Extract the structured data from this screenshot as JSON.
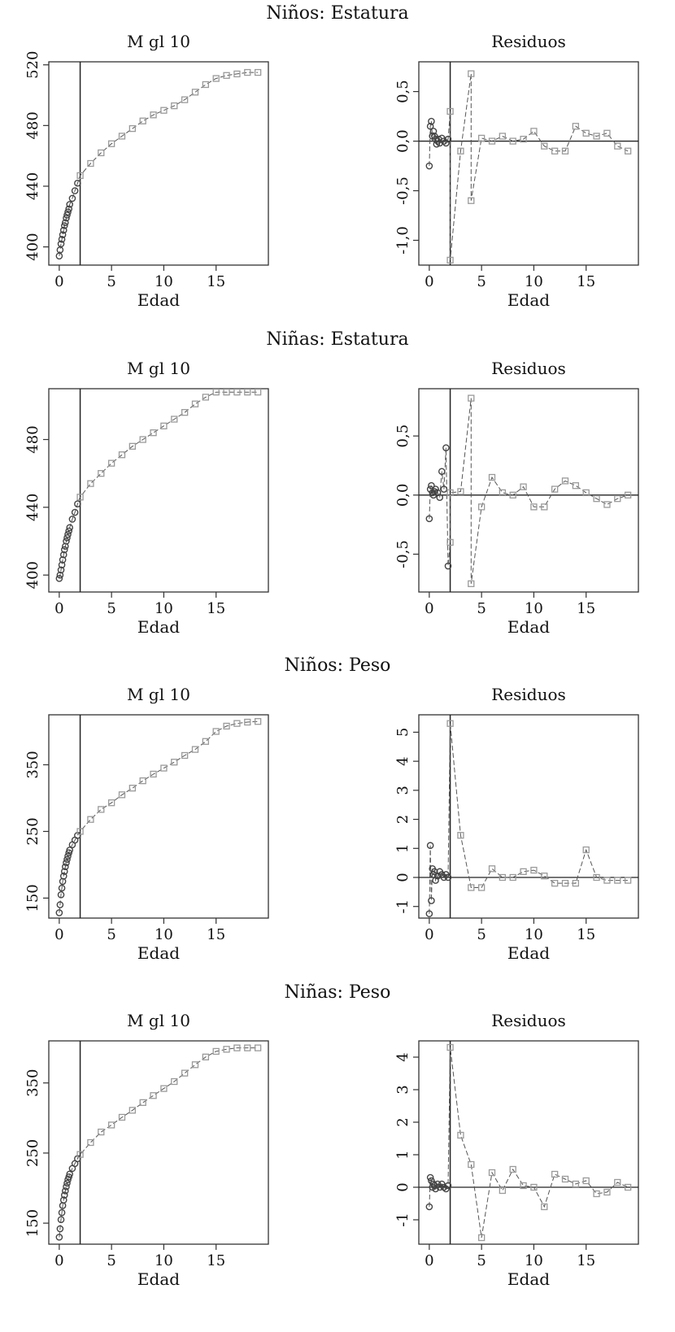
{
  "figure": {
    "groups": [
      {
        "title": "Niños: Estatura"
      },
      {
        "title": "Niñas: Estatura"
      },
      {
        "title": "Niños: Peso"
      },
      {
        "title": "Niñas: Peso"
      }
    ]
  },
  "style": {
    "axis_color": "#333333",
    "point_color": "#9a9a9a",
    "dense_point_color": "#444444",
    "ref_line_color": "#222222"
  },
  "chart_data": [
    {
      "type": "scatter",
      "group": "Niños: Estatura",
      "title": "M gl 10",
      "xlabel": "Edad",
      "ylabel": "",
      "xlim": [
        -1,
        20
      ],
      "ylim": [
        388,
        522
      ],
      "xticks": [
        0,
        5,
        10,
        15
      ],
      "yticks": [
        400,
        440,
        480,
        520
      ],
      "ytick_labels": [
        "400",
        "440",
        "480",
        "520"
      ],
      "vline": 2,
      "connect": true,
      "series": [
        {
          "x": [
            0,
            0.08,
            0.17,
            0.25,
            0.33,
            0.42,
            0.5,
            0.58,
            0.67,
            0.75,
            0.83,
            0.92,
            1,
            1.25,
            1.5,
            1.75,
            2,
            3,
            4,
            5,
            6,
            7,
            8,
            9,
            10,
            11,
            12,
            13,
            14,
            15,
            16,
            17,
            18,
            19
          ],
          "y": [
            394,
            398,
            402,
            405,
            408,
            411,
            414,
            416,
            419,
            421,
            423,
            425,
            428,
            432,
            437,
            442,
            447,
            455,
            462,
            468,
            473,
            478,
            483,
            487,
            490,
            493,
            497,
            502,
            507,
            511,
            513,
            514,
            515,
            515
          ]
        }
      ]
    },
    {
      "type": "scatter",
      "group": "Niños: Estatura",
      "title": "Residuos",
      "xlabel": "Edad",
      "ylabel": "",
      "xlim": [
        -1,
        20
      ],
      "ylim": [
        -1.25,
        0.8
      ],
      "xticks": [
        0,
        5,
        10,
        15
      ],
      "yticks": [
        -1,
        -0.5,
        0,
        0.5
      ],
      "ytick_labels": [
        "-1,0",
        "-0,5",
        "0,0",
        "0,5"
      ],
      "vline": 2,
      "hline": 0,
      "connect": true,
      "series": [
        {
          "x": [
            0,
            0.1,
            0.2,
            0.3,
            0.4,
            0.5,
            0.6,
            0.7,
            0.8,
            0.9,
            1,
            1.2,
            1.4,
            1.6,
            1.8,
            2,
            2,
            3,
            4,
            4,
            5,
            6,
            7,
            8,
            9,
            10,
            11,
            12,
            13,
            14,
            15,
            16,
            17,
            18,
            19
          ],
          "y": [
            -0.25,
            0.15,
            0.2,
            0.05,
            0.1,
            0.05,
            0.02,
            -0.03,
            0,
            0.02,
            -0.02,
            0.03,
            0,
            -0.02,
            0.02,
            0.3,
            -1.2,
            -0.1,
            0.68,
            -0.6,
            0.03,
            0,
            0.05,
            0,
            0.02,
            0.1,
            -0.05,
            -0.1,
            -0.1,
            0.15,
            0.08,
            0.05,
            0.08,
            -0.05,
            -0.1
          ]
        }
      ]
    },
    {
      "type": "scatter",
      "group": "Niñas: Estatura",
      "title": "M gl 10",
      "xlabel": "Edad",
      "ylabel": "",
      "xlim": [
        -1,
        20
      ],
      "ylim": [
        390,
        510
      ],
      "xticks": [
        0,
        5,
        10,
        15
      ],
      "yticks": [
        400,
        440,
        480
      ],
      "ytick_labels": [
        "400",
        "440",
        "480"
      ],
      "vline": 2,
      "connect": true,
      "series": [
        {
          "x": [
            0,
            0.08,
            0.17,
            0.25,
            0.33,
            0.42,
            0.5,
            0.58,
            0.67,
            0.75,
            0.83,
            0.92,
            1,
            1.25,
            1.5,
            1.75,
            2,
            3,
            4,
            5,
            6,
            7,
            8,
            9,
            10,
            11,
            12,
            13,
            14,
            15,
            16,
            17,
            18,
            19
          ],
          "y": [
            398,
            400,
            403,
            406,
            409,
            412,
            415,
            417,
            420,
            422,
            424,
            426,
            428,
            433,
            437,
            442,
            446,
            454,
            460,
            466,
            471,
            476,
            480,
            484,
            488,
            492,
            496,
            501,
            505,
            508,
            508,
            508,
            508,
            508
          ]
        }
      ]
    },
    {
      "type": "scatter",
      "group": "Niñas: Estatura",
      "title": "Residuos",
      "xlabel": "Edad",
      "ylabel": "",
      "xlim": [
        -1,
        20
      ],
      "ylim": [
        -0.82,
        0.9
      ],
      "xticks": [
        0,
        5,
        10,
        15
      ],
      "yticks": [
        -0.5,
        0,
        0.5
      ],
      "ytick_labels": [
        "-0,5",
        "0,0",
        "0,5"
      ],
      "vline": 2,
      "hline": 0,
      "connect": true,
      "series": [
        {
          "x": [
            0,
            0.1,
            0.2,
            0.3,
            0.4,
            0.5,
            0.6,
            0.8,
            1,
            1.2,
            1.4,
            1.6,
            1.8,
            2,
            2,
            3,
            4,
            4,
            5,
            6,
            7,
            8,
            9,
            10,
            11,
            12,
            13,
            14,
            15,
            16,
            17,
            18,
            19
          ],
          "y": [
            -0.2,
            0.05,
            0.08,
            0.02,
            0,
            0.03,
            0.05,
            0.02,
            -0.02,
            0.2,
            0.05,
            0.4,
            -0.6,
            -0.4,
            0.02,
            0.03,
            0.82,
            -0.75,
            -0.1,
            0.15,
            0.02,
            0,
            0.07,
            -0.1,
            -0.1,
            0.05,
            0.12,
            0.08,
            0.02,
            -0.03,
            -0.08,
            -0.03,
            0
          ]
        }
      ]
    },
    {
      "type": "scatter",
      "group": "Niños: Peso",
      "title": "M gl 10",
      "xlabel": "Edad",
      "ylabel": "",
      "xlim": [
        -1,
        20
      ],
      "ylim": [
        120,
        425
      ],
      "xticks": [
        0,
        5,
        10,
        15
      ],
      "yticks": [
        150,
        250,
        350
      ],
      "ytick_labels": [
        "150",
        "250",
        "350"
      ],
      "vline": 2,
      "connect": true,
      "series": [
        {
          "x": [
            0,
            0.08,
            0.17,
            0.25,
            0.33,
            0.42,
            0.5,
            0.58,
            0.67,
            0.75,
            0.83,
            0.92,
            1,
            1.25,
            1.5,
            1.75,
            2,
            3,
            4,
            5,
            6,
            7,
            8,
            9,
            10,
            11,
            12,
            13,
            14,
            15,
            16,
            17,
            18,
            19
          ],
          "y": [
            128,
            140,
            155,
            165,
            175,
            183,
            190,
            197,
            203,
            208,
            213,
            218,
            222,
            230,
            237,
            244,
            250,
            268,
            283,
            293,
            305,
            315,
            326,
            336,
            345,
            354,
            364,
            373,
            385,
            400,
            408,
            412,
            414,
            415
          ]
        }
      ]
    },
    {
      "type": "scatter",
      "group": "Niños: Peso",
      "title": "Residuos",
      "xlabel": "Edad",
      "ylabel": "",
      "xlim": [
        -1,
        20
      ],
      "ylim": [
        -1.4,
        5.6
      ],
      "xticks": [
        0,
        5,
        10,
        15
      ],
      "yticks": [
        -1,
        0,
        1,
        2,
        3,
        4,
        5
      ],
      "ytick_labels": [
        "-1",
        "0",
        "1",
        "2",
        "3",
        "4",
        "5"
      ],
      "vline": 2,
      "hline": 0,
      "connect": true,
      "series": [
        {
          "x": [
            0,
            0.1,
            0.2,
            0.3,
            0.4,
            0.5,
            0.6,
            0.8,
            1,
            1.2,
            1.4,
            1.6,
            1.8,
            2,
            3,
            4,
            5,
            6,
            7,
            8,
            9,
            10,
            11,
            12,
            13,
            14,
            15,
            16,
            17,
            18,
            19
          ],
          "y": [
            -1.25,
            1.1,
            -0.8,
            0.3,
            0.1,
            0.2,
            -0.1,
            0.05,
            0.2,
            0.1,
            0,
            0.1,
            0,
            5.3,
            1.45,
            -0.35,
            -0.35,
            0.3,
            0,
            0,
            0.2,
            0.25,
            0.05,
            -0.2,
            -0.2,
            -0.2,
            0.95,
            0,
            -0.1,
            -0.1,
            -0.1
          ]
        }
      ]
    },
    {
      "type": "scatter",
      "group": "Niñas: Peso",
      "title": "M gl 10",
      "xlabel": "Edad",
      "ylabel": "",
      "xlim": [
        -1,
        20
      ],
      "ylim": [
        120,
        410
      ],
      "xticks": [
        0,
        5,
        10,
        15
      ],
      "yticks": [
        150,
        250,
        350
      ],
      "ytick_labels": [
        "150",
        "250",
        "350"
      ],
      "vline": 2,
      "connect": true,
      "series": [
        {
          "x": [
            0,
            0.08,
            0.17,
            0.25,
            0.33,
            0.42,
            0.5,
            0.58,
            0.67,
            0.75,
            0.83,
            0.92,
            1,
            1.25,
            1.5,
            1.75,
            2,
            3,
            4,
            5,
            6,
            7,
            8,
            9,
            10,
            11,
            12,
            13,
            14,
            15,
            16,
            17,
            18,
            19
          ],
          "y": [
            130,
            142,
            155,
            165,
            175,
            183,
            190,
            196,
            202,
            207,
            212,
            216,
            220,
            228,
            235,
            242,
            248,
            265,
            280,
            290,
            301,
            311,
            322,
            332,
            342,
            352,
            364,
            376,
            387,
            395,
            398,
            400,
            400,
            400
          ]
        }
      ]
    },
    {
      "type": "scatter",
      "group": "Niñas: Peso",
      "title": "Residuos",
      "xlabel": "Edad",
      "ylabel": "",
      "xlim": [
        -1,
        20
      ],
      "ylim": [
        -1.75,
        4.5
      ],
      "xticks": [
        0,
        5,
        10,
        15
      ],
      "yticks": [
        -1,
        0,
        1,
        2,
        3,
        4
      ],
      "ytick_labels": [
        "-1",
        "0",
        "1",
        "2",
        "3",
        "4"
      ],
      "vline": 2,
      "hline": 0,
      "connect": true,
      "series": [
        {
          "x": [
            0,
            0.1,
            0.2,
            0.3,
            0.4,
            0.5,
            0.6,
            0.8,
            1,
            1.2,
            1.4,
            1.6,
            1.8,
            2,
            3,
            4,
            5,
            6,
            7,
            8,
            9,
            10,
            11,
            12,
            13,
            14,
            15,
            16,
            17,
            18,
            19
          ],
          "y": [
            -0.6,
            0.3,
            0.2,
            0,
            0.1,
            0.05,
            -0.05,
            0.1,
            0,
            0.1,
            0,
            -0.05,
            0.05,
            4.3,
            1.6,
            0.7,
            -1.55,
            0.45,
            -0.1,
            0.55,
            0.05,
            0,
            -0.6,
            0.4,
            0.25,
            0.1,
            0.2,
            -0.2,
            -0.15,
            0.15,
            0
          ]
        }
      ]
    }
  ]
}
